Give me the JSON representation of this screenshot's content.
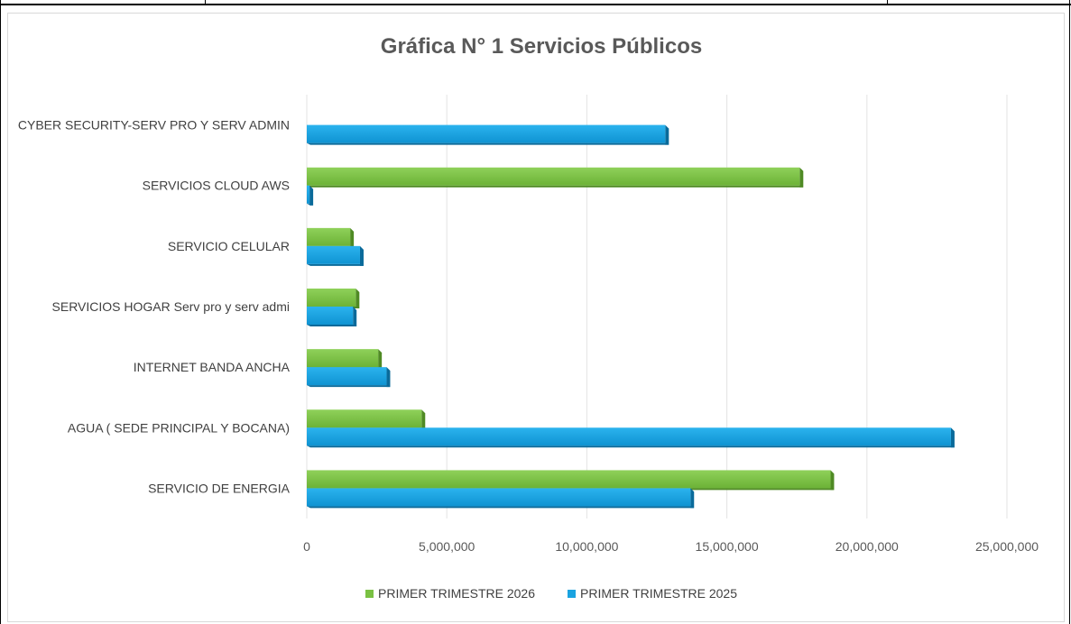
{
  "chart_data": {
    "type": "bar",
    "orientation": "horizontal",
    "title": "Gráfica N° 1 Servicios Públicos",
    "xlabel": "",
    "ylabel": "",
    "categories": [
      "SERVICIO DE ENERGIA",
      "AGUA ( SEDE PRINCIPAL Y BOCANA)",
      "INTERNET BANDA ANCHA",
      "SERVICIOS HOGAR Serv pro y serv admi",
      "SERVICIO CELULAR",
      "SERVICIOS CLOUD AWS",
      "CYBER SECURITY-SERV PRO Y SERV ADMIN"
    ],
    "series": [
      {
        "name": "PRIMER TRIMESTRE 2026",
        "color": "#7ac143",
        "values": [
          18700000,
          4100000,
          2550000,
          1750000,
          1550000,
          17600000,
          0
        ]
      },
      {
        "name": "PRIMER TRIMESTRE 2025",
        "color": "#1aa3e0",
        "values": [
          13700000,
          23000000,
          2850000,
          1650000,
          1900000,
          100000,
          12800000
        ]
      }
    ],
    "xlim": [
      0,
      25000000
    ],
    "xticks": [
      "0",
      "5,000,000",
      "10,000,000",
      "15,000,000",
      "20,000,000",
      "25,000,000"
    ],
    "grid": true,
    "legend": "bottom"
  }
}
